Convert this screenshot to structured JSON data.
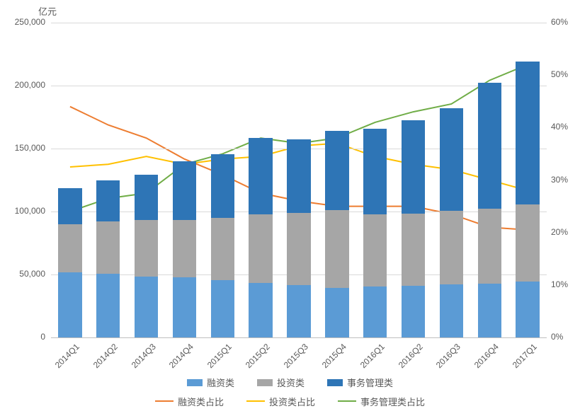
{
  "chart": {
    "type": "stacked-bar-with-secondary-axis-lines",
    "unit_label": "亿元",
    "y_axis": {
      "min": 0,
      "max": 250000,
      "step": 50000
    },
    "y2_axis": {
      "min": 0,
      "max": 60,
      "step": 10,
      "format": "%"
    },
    "categories": [
      "2014Q1",
      "2014Q2",
      "2014Q3",
      "2014Q4",
      "2015Q1",
      "2015Q2",
      "2015Q3",
      "2015Q4",
      "2016Q1",
      "2016Q2",
      "2016Q3",
      "2016Q4",
      "2017Q1"
    ],
    "bar_series": [
      {
        "name": "融资类",
        "color": "#5b9bd5",
        "values": [
          51500,
          50500,
          48500,
          47500,
          45500,
          43500,
          41500,
          39500,
          40500,
          41000,
          42000,
          42500,
          44500
        ]
      },
      {
        "name": "投资类",
        "color": "#a6a6a6",
        "values": [
          38500,
          41500,
          44500,
          46000,
          49500,
          54500,
          57500,
          61500,
          57500,
          57500,
          58500,
          60000,
          61000
        ]
      },
      {
        "name": "事务管理类",
        "color": "#2e75b6",
        "values": [
          28500,
          33000,
          36500,
          46500,
          50500,
          60500,
          58500,
          63000,
          68000,
          74000,
          81500,
          99500,
          113500
        ]
      }
    ],
    "line_series": [
      {
        "name": "融资类占比",
        "color": "#ed7d31",
        "values": [
          44,
          40.5,
          38,
          34,
          31,
          27.5,
          26,
          25,
          25,
          25,
          23.5,
          21,
          20.5
        ]
      },
      {
        "name": "投资类占比",
        "color": "#ffc000",
        "values": [
          32.5,
          33,
          34.5,
          33,
          34,
          34.5,
          36.5,
          37,
          34.5,
          33,
          32,
          30,
          28
        ]
      },
      {
        "name": "事务管理类占比",
        "color": "#70ad47",
        "values": [
          24,
          26.5,
          27.5,
          33,
          35,
          38,
          37,
          38,
          41,
          43,
          44.5,
          49,
          52
        ]
      }
    ],
    "grid_color": "#d9d9d9",
    "bar_width_ratio": 0.62,
    "line_width": 2,
    "font_size_tick": 12,
    "font_size_unit": 13,
    "font_size_legend": 13
  }
}
